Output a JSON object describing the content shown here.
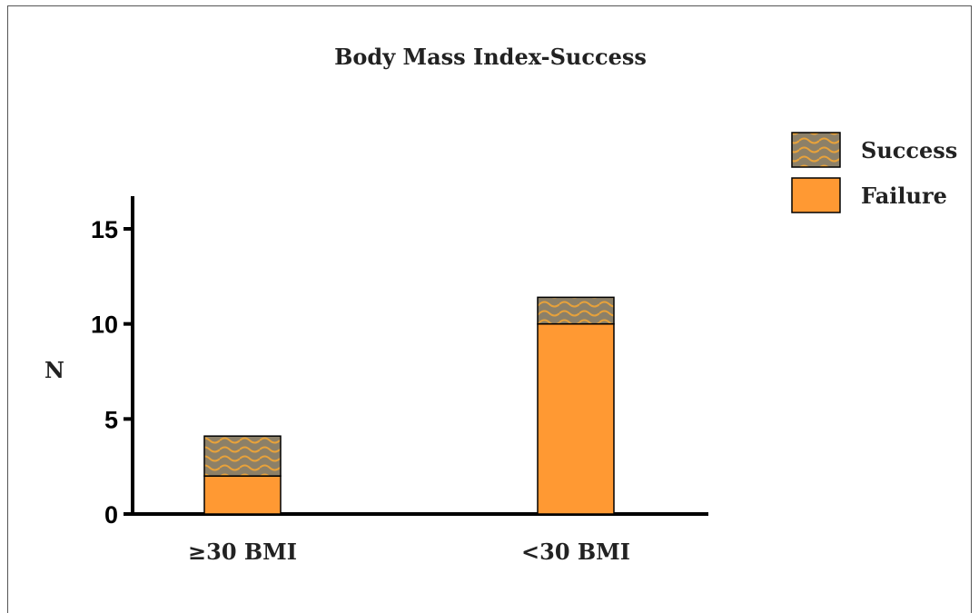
{
  "chart_data": {
    "type": "bar",
    "stacked": true,
    "title": "Body Mass Index-Success",
    "ylabel": "N",
    "xlabel": "",
    "categories": [
      "≥30 BMI",
      "<30 BMI"
    ],
    "series": [
      {
        "name": "Failure",
        "values": [
          2,
          10
        ],
        "color": "#FF9933",
        "pattern": "solid"
      },
      {
        "name": "Success",
        "values": [
          2.1,
          1.4
        ],
        "color": "#8C8068",
        "pattern": "wavy-hatch",
        "hatch_color": "#E8A23A"
      }
    ],
    "ylim": [
      0,
      17
    ],
    "yticks": [
      0,
      5,
      10,
      15
    ],
    "ytick_labels": [
      "0",
      "5",
      "10",
      "15"
    ],
    "grid": false,
    "legend_position": "top-right"
  }
}
